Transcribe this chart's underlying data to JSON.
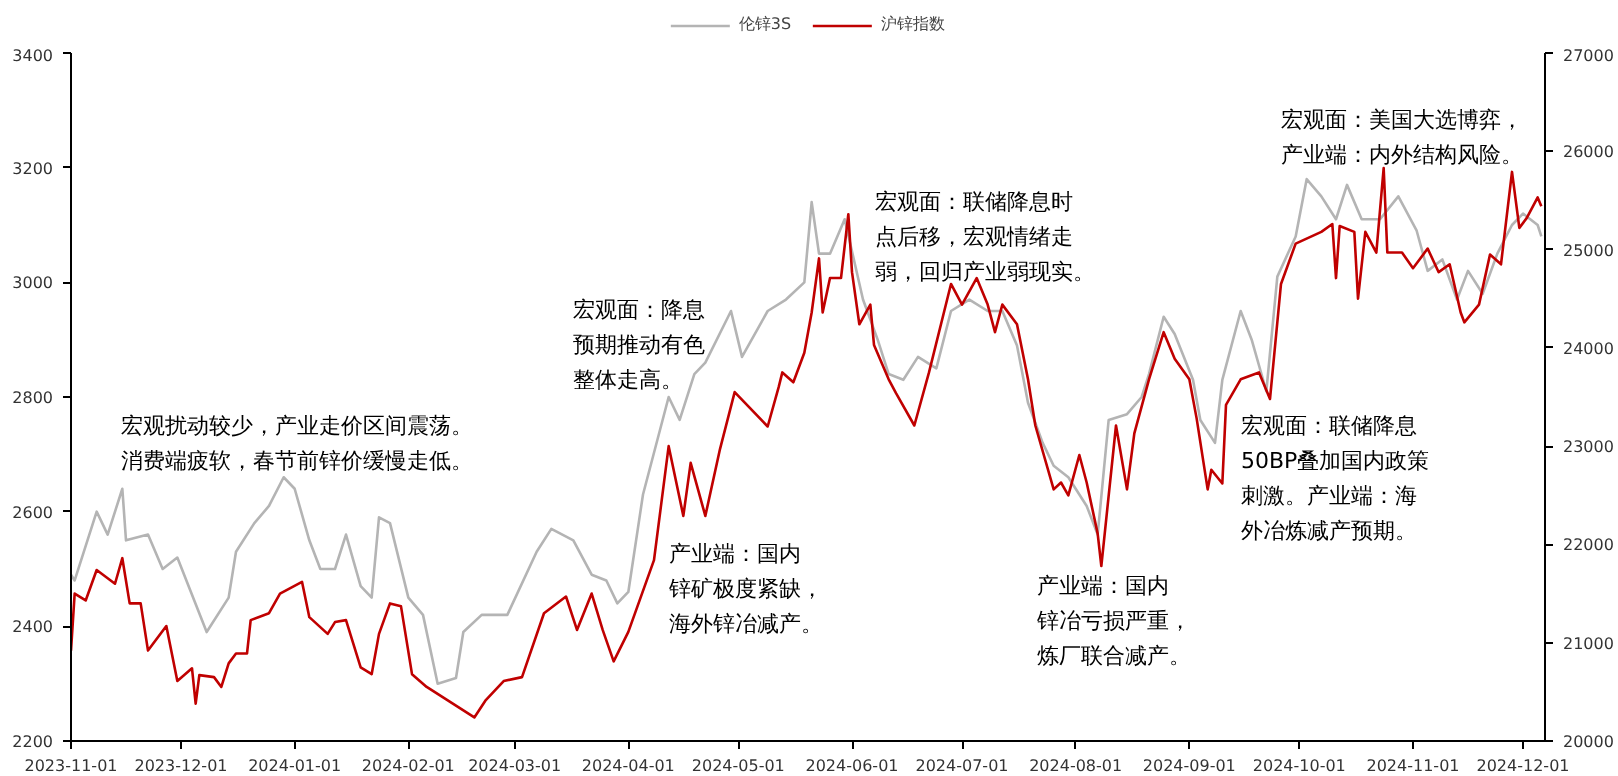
{
  "chart_data": {
    "type": "line",
    "legend": "top",
    "grid": false,
    "xlim": [
      "2023-11-01",
      "2024-12-07"
    ],
    "xticks": [
      "2023-11-01",
      "2023-12-01",
      "2024-01-01",
      "2024-02-01",
      "2024-03-01",
      "2024-04-01",
      "2024-05-01",
      "2024-06-01",
      "2024-07-01",
      "2024-08-01",
      "2024-09-01",
      "2024-10-01",
      "2024-11-01",
      "2024-12-01"
    ],
    "ylim": [
      2200,
      3400
    ],
    "yticks": [
      2200,
      2400,
      2600,
      2800,
      3000,
      3200,
      3400
    ],
    "y2lim": [
      20000,
      27000
    ],
    "y2ticks": [
      20000,
      21000,
      22000,
      23000,
      24000,
      25000,
      26000,
      27000
    ],
    "series": [
      {
        "name": "伦锌3S",
        "color": "#b4b4b4",
        "x": [
          "2023-11-01",
          "2023-11-02",
          "2023-11-08",
          "2023-11-11",
          "2023-11-15",
          "2023-11-16",
          "2023-11-22",
          "2023-11-26",
          "2023-11-30",
          "2023-12-08",
          "2023-12-14",
          "2023-12-16",
          "2023-12-21",
          "2023-12-25",
          "2023-12-29",
          "2024-01-01",
          "2024-01-05",
          "2024-01-08",
          "2024-01-12",
          "2024-01-15",
          "2024-01-19",
          "2024-01-22",
          "2024-01-24",
          "2024-01-27",
          "2024-02-01",
          "2024-02-05",
          "2024-02-09",
          "2024-02-14",
          "2024-02-16",
          "2024-02-21",
          "2024-02-28",
          "2024-03-07",
          "2024-03-11",
          "2024-03-17",
          "2024-03-22",
          "2024-03-26",
          "2024-03-29",
          "2024-04-01",
          "2024-04-05",
          "2024-04-12",
          "2024-04-15",
          "2024-04-19",
          "2024-04-22",
          "2024-04-29",
          "2024-05-02",
          "2024-05-09",
          "2024-05-14",
          "2024-05-19",
          "2024-05-21",
          "2024-05-23",
          "2024-05-26",
          "2024-05-30",
          "2024-06-04",
          "2024-06-08",
          "2024-06-11",
          "2024-06-15",
          "2024-06-19",
          "2024-06-24",
          "2024-06-28",
          "2024-07-03",
          "2024-07-08",
          "2024-07-12",
          "2024-07-16",
          "2024-07-19",
          "2024-07-23",
          "2024-07-26",
          "2024-07-30",
          "2024-08-04",
          "2024-08-07",
          "2024-08-10",
          "2024-08-15",
          "2024-08-19",
          "2024-08-21",
          "2024-08-25",
          "2024-08-28",
          "2024-09-02",
          "2024-09-04",
          "2024-09-08",
          "2024-09-10",
          "2024-09-15",
          "2024-09-18",
          "2024-09-22",
          "2024-09-25",
          "2024-09-30",
          "2024-10-03",
          "2024-10-07",
          "2024-10-11",
          "2024-10-14",
          "2024-10-18",
          "2024-10-23",
          "2024-10-28",
          "2024-11-02",
          "2024-11-05",
          "2024-11-09",
          "2024-11-13",
          "2024-11-16",
          "2024-11-20",
          "2024-11-24",
          "2024-11-28",
          "2024-12-01",
          "2024-12-05",
          "2024-12-06"
        ],
        "values": [
          2490,
          2480,
          2600,
          2560,
          2640,
          2550,
          2560,
          2500,
          2520,
          2390,
          2450,
          2530,
          2580,
          2610,
          2660,
          2640,
          2550,
          2500,
          2500,
          2560,
          2470,
          2450,
          2590,
          2580,
          2450,
          2420,
          2300,
          2310,
          2390,
          2420,
          2420,
          2530,
          2570,
          2550,
          2490,
          2480,
          2440,
          2460,
          2630,
          2800,
          2760,
          2840,
          2860,
          2950,
          2870,
          2950,
          2970,
          3000,
          3140,
          3050,
          3050,
          3110,
          2970,
          2900,
          2840,
          2830,
          2870,
          2850,
          2950,
          2970,
          2950,
          2950,
          2890,
          2790,
          2720,
          2680,
          2660,
          2610,
          2560,
          2760,
          2770,
          2800,
          2840,
          2940,
          2910,
          2830,
          2760,
          2720,
          2830,
          2950,
          2900,
          2810,
          3010,
          3080,
          3180,
          3150,
          3110,
          3170,
          3110,
          3110,
          3150,
          3090,
          3020,
          3040,
          2970,
          3020,
          2980,
          3050,
          3100,
          3120,
          3100,
          3080
        ]
      },
      {
        "name": "沪锌指数",
        "color": "#c00000",
        "axis": "y2",
        "x": [
          "2023-11-01",
          "2023-11-02",
          "2023-11-05",
          "2023-11-08",
          "2023-11-13",
          "2023-11-15",
          "2023-11-17",
          "2023-11-20",
          "2023-11-22",
          "2023-11-27",
          "2023-11-30",
          "2023-12-04",
          "2023-12-05",
          "2023-12-06",
          "2023-12-10",
          "2023-12-12",
          "2023-12-14",
          "2023-12-16",
          "2023-12-19",
          "2023-12-20",
          "2023-12-25",
          "2023-12-28",
          "2024-01-03",
          "2024-01-05",
          "2024-01-10",
          "2024-01-12",
          "2024-01-15",
          "2024-01-19",
          "2024-01-22",
          "2024-01-24",
          "2024-01-27",
          "2024-01-30",
          "2024-02-02",
          "2024-02-06",
          "2024-02-19",
          "2024-02-22",
          "2024-02-27",
          "2024-03-03",
          "2024-03-09",
          "2024-03-15",
          "2024-03-18",
          "2024-03-22",
          "2024-03-25",
          "2024-03-28",
          "2024-04-01",
          "2024-04-08",
          "2024-04-12",
          "2024-04-16",
          "2024-04-18",
          "2024-04-22",
          "2024-04-26",
          "2024-04-30",
          "2024-05-09",
          "2024-05-12",
          "2024-05-13",
          "2024-05-16",
          "2024-05-19",
          "2024-05-21",
          "2024-05-23",
          "2024-05-24",
          "2024-05-26",
          "2024-05-29",
          "2024-05-31",
          "2024-06-01",
          "2024-06-03",
          "2024-06-06",
          "2024-06-07",
          "2024-06-11",
          "2024-06-13",
          "2024-06-18",
          "2024-06-22",
          "2024-06-28",
          "2024-07-01",
          "2024-07-05",
          "2024-07-08",
          "2024-07-10",
          "2024-07-12",
          "2024-07-16",
          "2024-07-19",
          "2024-07-21",
          "2024-07-26",
          "2024-07-28",
          "2024-07-30",
          "2024-08-02",
          "2024-08-04",
          "2024-08-07",
          "2024-08-08",
          "2024-08-12",
          "2024-08-15",
          "2024-08-17",
          "2024-08-21",
          "2024-08-25",
          "2024-08-28",
          "2024-09-01",
          "2024-09-03",
          "2024-09-06",
          "2024-09-07",
          "2024-09-10",
          "2024-09-11",
          "2024-09-15",
          "2024-09-20",
          "2024-09-23",
          "2024-09-26",
          "2024-09-30",
          "2024-10-07",
          "2024-10-10",
          "2024-10-11",
          "2024-10-12",
          "2024-10-16",
          "2024-10-17",
          "2024-10-19",
          "2024-10-22",
          "2024-10-24",
          "2024-10-25",
          "2024-10-29",
          "2024-11-01",
          "2024-11-05",
          "2024-11-08",
          "2024-11-11",
          "2024-11-14",
          "2024-11-15",
          "2024-11-19",
          "2024-11-22",
          "2024-11-25",
          "2024-11-28",
          "2024-11-30",
          "2024-12-02",
          "2024-12-05",
          "2024-12-06"
        ],
        "values": [
          20920,
          21500,
          21430,
          21740,
          21600,
          21860,
          21400,
          21400,
          20920,
          21170,
          20610,
          20740,
          20380,
          20670,
          20650,
          20550,
          20790,
          20890,
          20890,
          21230,
          21300,
          21500,
          21620,
          21260,
          21090,
          21210,
          21230,
          20750,
          20680,
          21090,
          21400,
          21370,
          20680,
          20550,
          20240,
          20410,
          20610,
          20650,
          21300,
          21470,
          21130,
          21500,
          21130,
          20810,
          21110,
          21840,
          23000,
          22290,
          22830,
          22290,
          22970,
          23550,
          23200,
          23600,
          23750,
          23650,
          23950,
          24360,
          24910,
          24360,
          24710,
          24710,
          25360,
          24770,
          24240,
          24440,
          24030,
          23680,
          23540,
          23210,
          23750,
          24650,
          24440,
          24710,
          24440,
          24160,
          24440,
          24240,
          23680,
          23210,
          22560,
          22630,
          22500,
          22910,
          22630,
          22110,
          21780,
          23210,
          22560,
          23130,
          23680,
          24160,
          23890,
          23680,
          23280,
          22560,
          22760,
          22620,
          23420,
          23680,
          23750,
          23480,
          24650,
          25060,
          25180,
          25260,
          24710,
          25240,
          25180,
          24500,
          25180,
          24970,
          25830,
          24970,
          24970,
          24810,
          25010,
          24770,
          24850,
          24360,
          24260,
          24440,
          24950,
          24850,
          25790,
          25220,
          25320,
          25530,
          25440
        ]
      }
    ],
    "annotations": [
      "宏观扰动较少，产业走价区间震荡。消费端疲软，春节前锌价缓慢走低。",
      "宏观面：降息预期推动有色整体走高。",
      "产业端：国内锌矿极度紧缺，海外锌冶减产。",
      "宏观面：联储降息时点后移，宏观情绪走弱，回归产业弱现实。",
      "产业端：国内锌冶亏损严重，炼厂联合减产。",
      "宏观面：联储降息50BP叠加国内政策刺激。产业端：海外冶炼减产预期。",
      "宏观面：美国大选博弈，产业端：内外结构风险。"
    ]
  }
}
